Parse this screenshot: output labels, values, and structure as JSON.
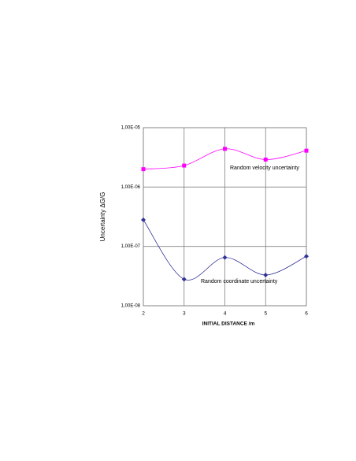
{
  "chart_data": {
    "type": "line",
    "x_label": "INITIAL DISTANCE /m",
    "y_label": "Uncertainty ΔG/G",
    "x": [
      2,
      3,
      4,
      5,
      6
    ],
    "xlim": [
      2,
      6
    ],
    "xticks": [
      2,
      3,
      4,
      5,
      6
    ],
    "ylim": [
      1e-08,
      1e-05
    ],
    "yticks": [
      {
        "value": 1e-05,
        "label": "1,00E-05"
      },
      {
        "value": 1e-06,
        "label": "1,00E-06"
      },
      {
        "value": 1e-07,
        "label": "1,00E-07"
      },
      {
        "value": 1e-08,
        "label": "1,00E-08"
      }
    ],
    "log_y": true,
    "grid": true,
    "smooth": true,
    "series": [
      {
        "name": "Random velocity uncertainty",
        "color": "#ff00ff",
        "marker": "square",
        "values": [
          2e-06,
          2.3e-06,
          4.4e-06,
          2.9e-06,
          4.1e-06
        ]
      },
      {
        "name": "Random coordinate uncertainty",
        "color": "#333399",
        "marker": "diamond",
        "values": [
          2.8e-07,
          2.8e-08,
          6.5e-08,
          3.3e-08,
          6.8e-08
        ]
      }
    ]
  }
}
